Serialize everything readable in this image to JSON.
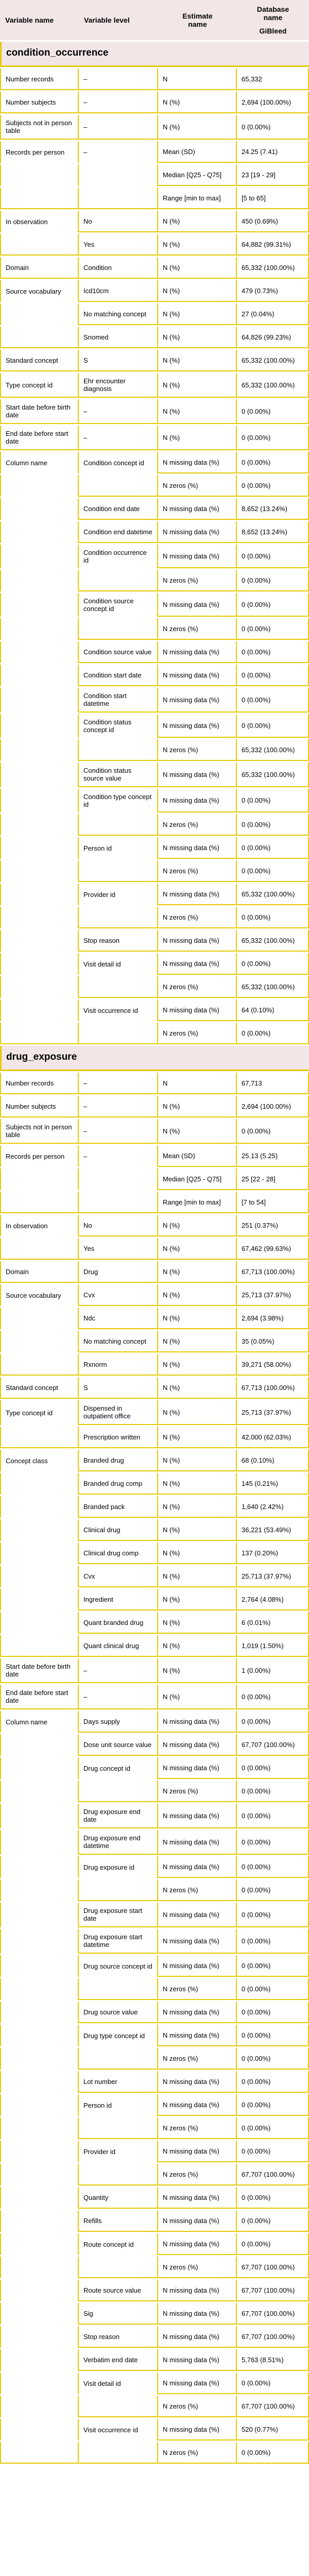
{
  "header": {
    "col1": "Variable name",
    "col2": "Variable level",
    "col3": "Estimate name",
    "col4": "Database name",
    "database": "GiBleed"
  },
  "colors": {
    "border": "#e5ca00",
    "header_bg": "#f2e6e6",
    "text": "#000000",
    "page_bg": "#ffffff"
  },
  "chart_data": [
    {
      "type": "table",
      "title": "condition_occurrence",
      "columns": [
        "Variable name",
        "Variable level",
        "Estimate name",
        "GiBleed"
      ],
      "rows": [
        [
          "Number records",
          "–",
          "N",
          "65,332"
        ],
        [
          "Number subjects",
          "–",
          "N (%)",
          "2,694 (100.00%)"
        ],
        [
          "Subjects not in person table",
          "–",
          "N (%)",
          "0 (0.00%)"
        ],
        [
          "Records per person",
          "–",
          "Mean (SD)",
          "24.25 (7.41)"
        ],
        [
          "",
          "",
          "Median [Q25 - Q75]",
          "23 [19 - 29]"
        ],
        [
          "",
          "",
          "Range [min to max]",
          "[5 to 65]"
        ],
        [
          "In observation",
          "No",
          "N (%)",
          "450 (0.69%)"
        ],
        [
          "",
          "Yes",
          "N (%)",
          "64,882 (99.31%)"
        ],
        [
          "Domain",
          "Condition",
          "N (%)",
          "65,332 (100.00%)"
        ],
        [
          "Source vocabulary",
          "Icd10cm",
          "N (%)",
          "479 (0.73%)"
        ],
        [
          "",
          "No matching concept",
          "N (%)",
          "27 (0.04%)"
        ],
        [
          "",
          "Snomed",
          "N (%)",
          "64,826 (99.23%)"
        ],
        [
          "Standard concept",
          "S",
          "N (%)",
          "65,332 (100.00%)"
        ],
        [
          "Type concept id",
          "Ehr encounter diagnosis",
          "N (%)",
          "65,332 (100.00%)"
        ],
        [
          "Start date before birth date",
          "–",
          "N (%)",
          "0 (0.00%)"
        ],
        [
          "End date before start date",
          "–",
          "N (%)",
          "0 (0.00%)"
        ],
        [
          "Column name",
          "Condition concept id",
          "N missing data (%)",
          "0 (0.00%)"
        ],
        [
          "",
          "",
          "N zeros (%)",
          "0 (0.00%)"
        ],
        [
          "",
          "Condition end date",
          "N missing data (%)",
          "8,652 (13.24%)"
        ],
        [
          "",
          "Condition end datetime",
          "N missing data (%)",
          "8,652 (13.24%)"
        ],
        [
          "",
          "Condition occurrence id",
          "N missing data (%)",
          "0 (0.00%)"
        ],
        [
          "",
          "",
          "N zeros (%)",
          "0 (0.00%)"
        ],
        [
          "",
          "Condition source concept id",
          "N missing data (%)",
          "0 (0.00%)"
        ],
        [
          "",
          "",
          "N zeros (%)",
          "0 (0.00%)"
        ],
        [
          "",
          "Condition source value",
          "N missing data (%)",
          "0 (0.00%)"
        ],
        [
          "",
          "Condition start date",
          "N missing data (%)",
          "0 (0.00%)"
        ],
        [
          "",
          "Condition start datetime",
          "N missing data (%)",
          "0 (0.00%)"
        ],
        [
          "",
          "Condition status concept id",
          "N missing data (%)",
          "0 (0.00%)"
        ],
        [
          "",
          "",
          "N zeros (%)",
          "65,332 (100.00%)"
        ],
        [
          "",
          "Condition status source value",
          "N missing data (%)",
          "65,332 (100.00%)"
        ],
        [
          "",
          "Condition type concept id",
          "N missing data (%)",
          "0 (0.00%)"
        ],
        [
          "",
          "",
          "N zeros (%)",
          "0 (0.00%)"
        ],
        [
          "",
          "Person id",
          "N missing data (%)",
          "0 (0.00%)"
        ],
        [
          "",
          "",
          "N zeros (%)",
          "0 (0.00%)"
        ],
        [
          "",
          "Provider id",
          "N missing data (%)",
          "65,332 (100.00%)"
        ],
        [
          "",
          "",
          "N zeros (%)",
          "0 (0.00%)"
        ],
        [
          "",
          "Stop reason",
          "N missing data (%)",
          "65,332 (100.00%)"
        ],
        [
          "",
          "Visit detail id",
          "N missing data (%)",
          "0 (0.00%)"
        ],
        [
          "",
          "",
          "N zeros (%)",
          "65,332 (100.00%)"
        ],
        [
          "",
          "Visit occurrence id",
          "N missing data (%)",
          "64 (0.10%)"
        ],
        [
          "",
          "",
          "N zeros (%)",
          "0 (0.00%)"
        ]
      ]
    },
    {
      "type": "table",
      "title": "drug_exposure",
      "columns": [
        "Variable name",
        "Variable level",
        "Estimate name",
        "GiBleed"
      ],
      "rows": [
        [
          "Number records",
          "–",
          "N",
          "67,713"
        ],
        [
          "Number subjects",
          "–",
          "N (%)",
          "2,694 (100.00%)"
        ],
        [
          "Subjects not in person table",
          "–",
          "N (%)",
          "0 (0.00%)"
        ],
        [
          "Records per person",
          "–",
          "Mean (SD)",
          "25.13 (5.25)"
        ],
        [
          "",
          "",
          "Median [Q25 - Q75]",
          "25 [22 - 28]"
        ],
        [
          "",
          "",
          "Range [min to max]",
          "[7 to 54]"
        ],
        [
          "In observation",
          "No",
          "N (%)",
          "251 (0.37%)"
        ],
        [
          "",
          "Yes",
          "N (%)",
          "67,462 (99.63%)"
        ],
        [
          "Domain",
          "Drug",
          "N (%)",
          "67,713 (100.00%)"
        ],
        [
          "Source vocabulary",
          "Cvx",
          "N (%)",
          "25,713 (37.97%)"
        ],
        [
          "",
          "Ndc",
          "N (%)",
          "2,694 (3.98%)"
        ],
        [
          "",
          "No matching concept",
          "N (%)",
          "35 (0.05%)"
        ],
        [
          "",
          "Rxnorm",
          "N (%)",
          "39,271 (58.00%)"
        ],
        [
          "Standard concept",
          "S",
          "N (%)",
          "67,713 (100.00%)"
        ],
        [
          "Type concept id",
          "Dispensed in outpatient office",
          "N (%)",
          "25,713 (37.97%)"
        ],
        [
          "",
          "Prescription written",
          "N (%)",
          "42,000 (62.03%)"
        ],
        [
          "Concept class",
          "Branded drug",
          "N (%)",
          "68 (0.10%)"
        ],
        [
          "",
          "Branded drug comp",
          "N (%)",
          "145 (0.21%)"
        ],
        [
          "",
          "Branded pack",
          "N (%)",
          "1,640 (2.42%)"
        ],
        [
          "",
          "Clinical drug",
          "N (%)",
          "36,221 (53.49%)"
        ],
        [
          "",
          "Clinical drug comp",
          "N (%)",
          "137 (0.20%)"
        ],
        [
          "",
          "Cvx",
          "N (%)",
          "25,713 (37.97%)"
        ],
        [
          "",
          "Ingredient",
          "N (%)",
          "2,764 (4.08%)"
        ],
        [
          "",
          "Quant branded drug",
          "N (%)",
          "6 (0.01%)"
        ],
        [
          "",
          "Quant clinical drug",
          "N (%)",
          "1,019 (1.50%)"
        ],
        [
          "Start date before birth date",
          "–",
          "N (%)",
          "1 (0.00%)"
        ],
        [
          "End date before start date",
          "–",
          "N (%)",
          "0 (0.00%)"
        ],
        [
          "Column name",
          "Days supply",
          "N missing data (%)",
          "0 (0.00%)"
        ],
        [
          "",
          "Dose unit source value",
          "N missing data (%)",
          "67,707 (100.00%)"
        ],
        [
          "",
          "Drug concept id",
          "N missing data (%)",
          "0 (0.00%)"
        ],
        [
          "",
          "",
          "N zeros (%)",
          "0 (0.00%)"
        ],
        [
          "",
          "Drug exposure end date",
          "N missing data (%)",
          "0 (0.00%)"
        ],
        [
          "",
          "Drug exposure end datetime",
          "N missing data (%)",
          "0 (0.00%)"
        ],
        [
          "",
          "Drug exposure id",
          "N missing data (%)",
          "0 (0.00%)"
        ],
        [
          "",
          "",
          "N zeros (%)",
          "0 (0.00%)"
        ],
        [
          "",
          "Drug exposure start date",
          "N missing data (%)",
          "0 (0.00%)"
        ],
        [
          "",
          "Drug exposure start datetime",
          "N missing data (%)",
          "0 (0.00%)"
        ],
        [
          "",
          "Drug source concept id",
          "N missing data (%)",
          "0 (0.00%)"
        ],
        [
          "",
          "",
          "N zeros (%)",
          "0 (0.00%)"
        ],
        [
          "",
          "Drug source value",
          "N missing data (%)",
          "0 (0.00%)"
        ],
        [
          "",
          "Drug type concept id",
          "N missing data (%)",
          "0 (0.00%)"
        ],
        [
          "",
          "",
          "N zeros (%)",
          "0 (0.00%)"
        ],
        [
          "",
          "Lot number",
          "N missing data (%)",
          "0 (0.00%)"
        ],
        [
          "",
          "Person id",
          "N missing data (%)",
          "0 (0.00%)"
        ],
        [
          "",
          "",
          "N zeros (%)",
          "0 (0.00%)"
        ],
        [
          "",
          "Provider id",
          "N missing data (%)",
          "0 (0.00%)"
        ],
        [
          "",
          "",
          "N zeros (%)",
          "67,707 (100.00%)"
        ],
        [
          "",
          "Quantity",
          "N missing data (%)",
          "0 (0.00%)"
        ],
        [
          "",
          "Refills",
          "N missing data (%)",
          "0 (0.00%)"
        ],
        [
          "",
          "Route concept id",
          "N missing data (%)",
          "0 (0.00%)"
        ],
        [
          "",
          "",
          "N zeros (%)",
          "67,707 (100.00%)"
        ],
        [
          "",
          "Route source value",
          "N missing data (%)",
          "67,707 (100.00%)"
        ],
        [
          "",
          "Sig",
          "N missing data (%)",
          "67,707 (100.00%)"
        ],
        [
          "",
          "Stop reason",
          "N missing data (%)",
          "67,707 (100.00%)"
        ],
        [
          "",
          "Verbatim end date",
          "N missing data (%)",
          "5,763 (8.51%)"
        ],
        [
          "",
          "Visit detail id",
          "N missing data (%)",
          "0 (0.00%)"
        ],
        [
          "",
          "",
          "N zeros (%)",
          "67,707 (100.00%)"
        ],
        [
          "",
          "Visit occurrence id",
          "N missing data (%)",
          "520 (0.77%)"
        ],
        [
          "",
          "",
          "N zeros (%)",
          "0 (0.00%)"
        ]
      ]
    }
  ]
}
